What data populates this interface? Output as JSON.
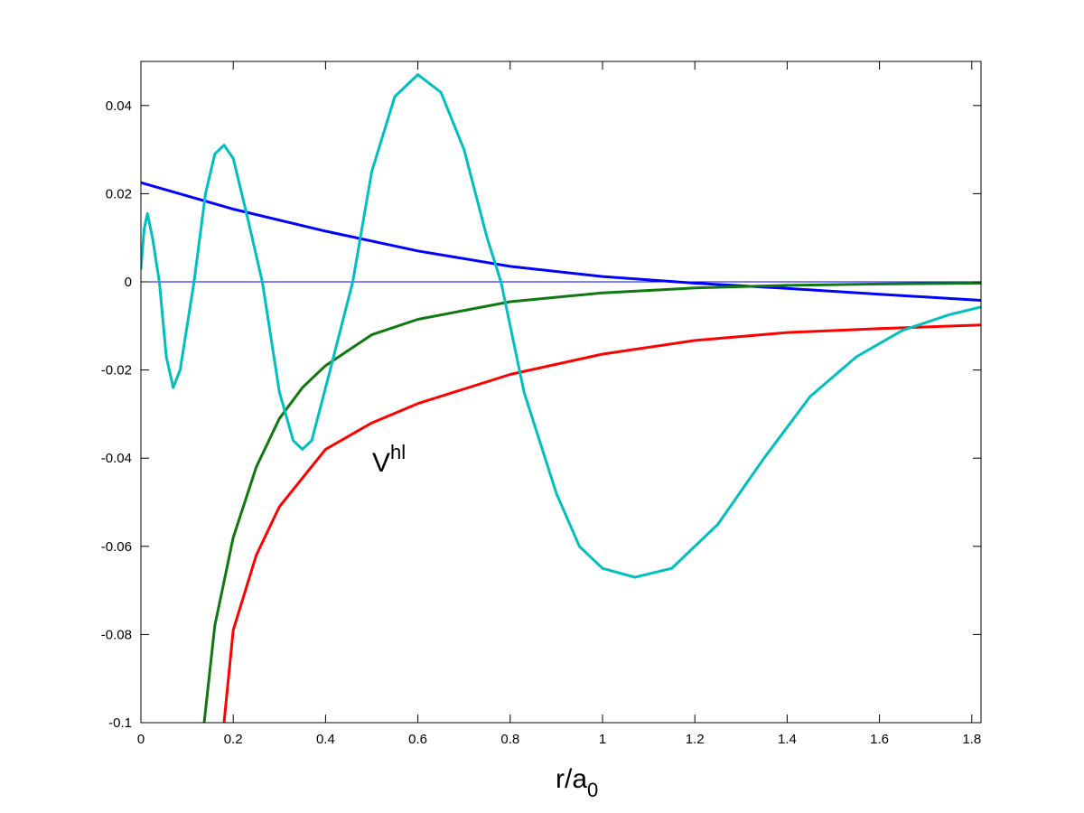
{
  "chart_data": {
    "type": "line",
    "xlabel": "r/a",
    "xlabel_sub": "0",
    "annotation": "V",
    "annotation_sup": "hl",
    "xlim": [
      0,
      1.82
    ],
    "ylim": [
      -0.1,
      0.05
    ],
    "xticks": [
      0,
      0.2,
      0.4,
      0.6,
      0.8,
      1,
      1.2,
      1.4,
      1.6,
      1.8
    ],
    "yticks": [
      -0.1,
      -0.08,
      -0.06,
      -0.04,
      -0.02,
      0,
      0.02,
      0.04
    ],
    "series": [
      {
        "color": "#0000ff",
        "line_width": 1,
        "x": [
          0,
          1.82
        ],
        "values": [
          0,
          0
        ]
      },
      {
        "color": "#0000ff",
        "line_width": 3,
        "x": [
          0,
          0.2,
          0.4,
          0.6,
          0.8,
          1.0,
          1.2,
          1.4,
          1.6,
          1.82
        ],
        "values": [
          0.0225,
          0.0165,
          0.0115,
          0.007,
          0.0035,
          0.0012,
          -0.0003,
          -0.0015,
          -0.0028,
          -0.0042
        ]
      },
      {
        "color": "#107810",
        "line_width": 3,
        "x": [
          0.137,
          0.16,
          0.2,
          0.25,
          0.3,
          0.35,
          0.4,
          0.5,
          0.6,
          0.8,
          1.0,
          1.2,
          1.4,
          1.6,
          1.82
        ],
        "values": [
          -0.1,
          -0.078,
          -0.058,
          -0.042,
          -0.031,
          -0.024,
          -0.019,
          -0.012,
          -0.0085,
          -0.0045,
          -0.0025,
          -0.0014,
          -0.0008,
          -0.0005,
          -0.0003
        ]
      },
      {
        "color": "#ff0000",
        "line_width": 3,
        "x": [
          0.18,
          0.2,
          0.25,
          0.3,
          0.4,
          0.5,
          0.6,
          0.8,
          1.0,
          1.2,
          1.4,
          1.6,
          1.82
        ],
        "values": [
          -0.1,
          -0.079,
          -0.062,
          -0.051,
          -0.038,
          -0.032,
          -0.0276,
          -0.021,
          -0.0164,
          -0.0133,
          -0.0115,
          -0.0106,
          -0.0098
        ]
      },
      {
        "color": "#00bfbf",
        "line_width": 3,
        "x": [
          0,
          0.007,
          0.014,
          0.025,
          0.04,
          0.055,
          0.07,
          0.085,
          0.1,
          0.115,
          0.14,
          0.16,
          0.18,
          0.2,
          0.23,
          0.263,
          0.3,
          0.33,
          0.35,
          0.37,
          0.41,
          0.459,
          0.5,
          0.55,
          0.6,
          0.65,
          0.7,
          0.75,
          0.78,
          0.83,
          0.9,
          0.95,
          1.0,
          1.07,
          1.15,
          1.25,
          1.35,
          1.45,
          1.55,
          1.65,
          1.75,
          1.82
        ],
        "values": [
          0.003,
          0.012,
          0.0155,
          0.01,
          0.0,
          -0.017,
          -0.024,
          -0.02,
          -0.01,
          0.0,
          0.02,
          0.029,
          0.031,
          0.028,
          0.015,
          0.0,
          -0.025,
          -0.036,
          -0.038,
          -0.036,
          -0.02,
          0.0,
          0.025,
          0.042,
          0.047,
          0.043,
          0.03,
          0.01,
          0.0,
          -0.025,
          -0.048,
          -0.06,
          -0.065,
          -0.067,
          -0.065,
          -0.055,
          -0.04,
          -0.026,
          -0.017,
          -0.011,
          -0.0075,
          -0.0057
        ]
      }
    ]
  }
}
